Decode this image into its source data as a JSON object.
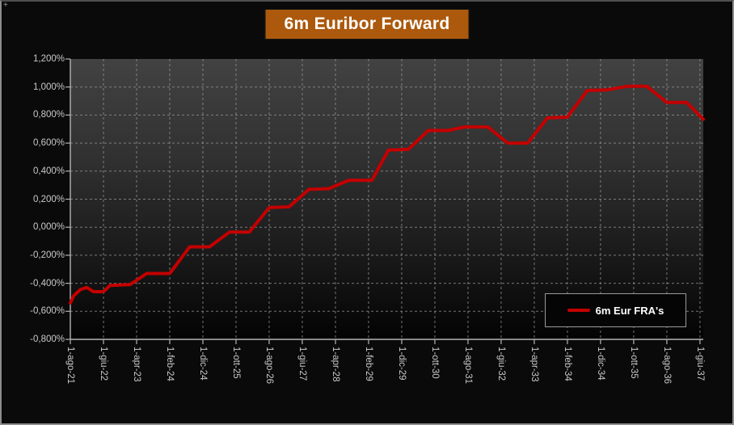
{
  "window": {
    "corner_glyph": "+"
  },
  "title": {
    "text": "6m Euribor Forward",
    "bg_color": "#AC590D",
    "text_color": "#FFFFFF"
  },
  "legend": {
    "label": "6m Eur FRA's",
    "swatch_color": "#C40000"
  },
  "chart_data": {
    "type": "line",
    "title": "6m Euribor Forward",
    "x_axis": {
      "tick_labels": [
        "1-ago-21",
        "1-giu-22",
        "1-apr-23",
        "1-feb-24",
        "1-dic-24",
        "1-ott-25",
        "1-ago-26",
        "1-giu-27",
        "1-apr-28",
        "1-feb-29",
        "1-dic-29",
        "1-ott-30",
        "1-ago-31",
        "1-giu-32",
        "1-apr-33",
        "1-feb-34",
        "1-dic-34",
        "1-ott-35",
        "1-ago-36",
        "1-giu-37"
      ],
      "tick_positions_months": [
        0,
        10,
        20,
        30,
        40,
        50,
        60,
        70,
        80,
        90,
        100,
        110,
        120,
        130,
        140,
        150,
        160,
        170,
        180,
        190
      ],
      "domain_months": [
        0,
        191
      ],
      "label_rotation": "90deg-clockwise"
    },
    "y_axis": {
      "min": -0.8,
      "max": 1.2,
      "step": 0.2,
      "unit": "%",
      "tick_labels": [
        "1,200%",
        "1,000%",
        "0,800%",
        "0,600%",
        "0,400%",
        "0,200%",
        "0,000%",
        "-0,200%",
        "-0,400%",
        "-0,600%",
        "-0,800%"
      ]
    },
    "grid": {
      "style": "dashed",
      "color": "#999999",
      "horizontal": true,
      "vertical": true
    },
    "legend": {
      "position": "bottom-right",
      "entries": [
        "6m Eur FRA's"
      ]
    },
    "series": [
      {
        "name": "6m Eur FRA's",
        "color": "#C40000",
        "points_month_value": [
          [
            0,
            -0.54
          ],
          [
            1,
            -0.49
          ],
          [
            3,
            -0.445
          ],
          [
            5,
            -0.43
          ],
          [
            7,
            -0.46
          ],
          [
            10,
            -0.46
          ],
          [
            12,
            -0.415
          ],
          [
            18,
            -0.41
          ],
          [
            23,
            -0.33
          ],
          [
            30,
            -0.33
          ],
          [
            36,
            -0.14
          ],
          [
            42,
            -0.14
          ],
          [
            48,
            -0.035
          ],
          [
            54,
            -0.035
          ],
          [
            60,
            0.14
          ],
          [
            66,
            0.145
          ],
          [
            72,
            0.27
          ],
          [
            78,
            0.275
          ],
          [
            84,
            0.335
          ],
          [
            91,
            0.335
          ],
          [
            96,
            0.55
          ],
          [
            102,
            0.555
          ],
          [
            108,
            0.69
          ],
          [
            114,
            0.69
          ],
          [
            119,
            0.715
          ],
          [
            126,
            0.715
          ],
          [
            132,
            0.6
          ],
          [
            138,
            0.6
          ],
          [
            144,
            0.78
          ],
          [
            150,
            0.785
          ],
          [
            156,
            0.975
          ],
          [
            162,
            0.98
          ],
          [
            168,
            1.005
          ],
          [
            174,
            1.005
          ],
          [
            180,
            0.89
          ],
          [
            186,
            0.89
          ],
          [
            191,
            0.77
          ]
        ]
      }
    ]
  },
  "layout_colors": {
    "plot_gradient_top": "#424242",
    "plot_gradient_bottom": "#030303",
    "axis_color": "#b4b4b4",
    "tick_text_color": "#c9c9c9"
  }
}
